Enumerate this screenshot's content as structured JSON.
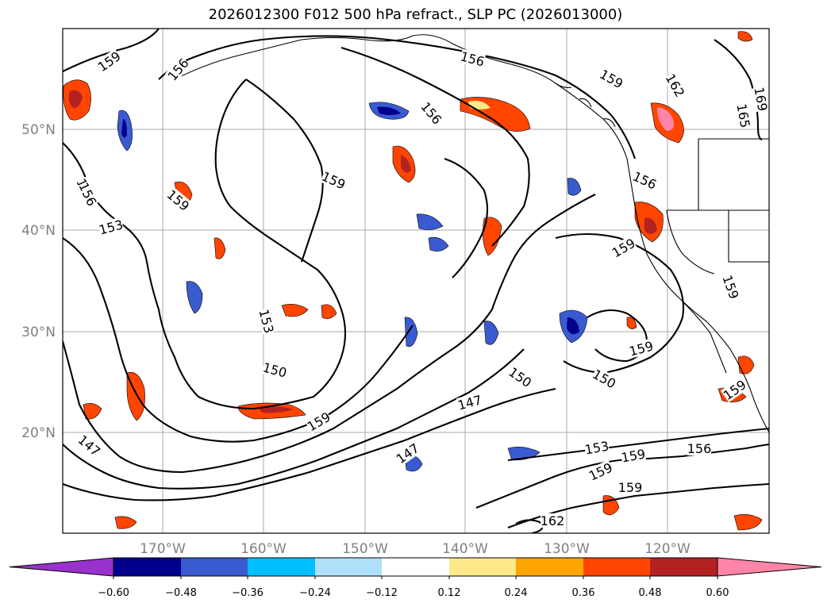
{
  "title": "2026012300 F012 500 hPa refract., SLP PC (2026013000)",
  "chart_data": {
    "type": "contour_map",
    "title": "2026012300 F012 500 hPa refract., SLP PC (2026013000)",
    "lat_labels": [
      "50°N",
      "40°N",
      "30°N",
      "20°N"
    ],
    "lon_labels": [
      "170°W",
      "160°W",
      "150°W",
      "140°W",
      "130°W",
      "120°W"
    ],
    "contour_labels": [
      "159",
      "156",
      "156",
      "156",
      "159",
      "162",
      "165",
      "159",
      "156",
      "153",
      "159",
      "159",
      "156",
      "153",
      "150",
      "159",
      "150",
      "147",
      "150",
      "159",
      "147",
      "153",
      "159",
      "159",
      "156",
      "159",
      "162",
      "159",
      "159",
      "147",
      "156",
      "169"
    ],
    "colorbar": {
      "ticks": [
        "−0.60",
        "−0.48",
        "−0.36",
        "−0.24",
        "−0.12",
        "0.12",
        "0.24",
        "0.36",
        "0.48",
        "0.60"
      ],
      "colors": [
        "#9932cc",
        "#00008b",
        "#3a5bd0",
        "#00bfff",
        "#b0e0fa",
        "#ffffff",
        "#fde98a",
        "#ffa500",
        "#ff4500",
        "#b22222",
        "#ff85a8"
      ]
    }
  }
}
